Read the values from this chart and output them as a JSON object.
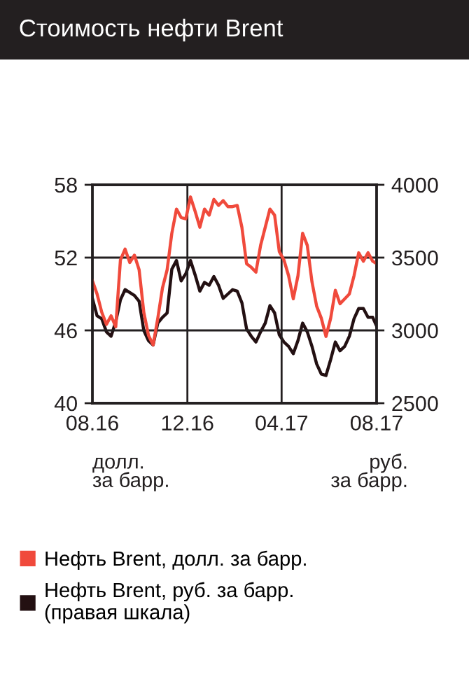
{
  "chart_data": {
    "type": "line",
    "title": "Стоимость нефти Brent",
    "x": [
      "2016-08-01",
      "2016-08-07",
      "2016-08-13",
      "2016-08-19",
      "2016-08-25",
      "2016-08-31",
      "2016-09-06",
      "2016-09-12",
      "2016-09-18",
      "2016-09-24",
      "2016-09-30",
      "2016-10-06",
      "2016-10-12",
      "2016-10-18",
      "2016-10-24",
      "2016-10-30",
      "2016-11-05",
      "2016-11-11",
      "2016-11-17",
      "2016-11-23",
      "2016-11-29",
      "2016-12-05",
      "2016-12-11",
      "2016-12-17",
      "2016-12-23",
      "2016-12-29",
      "2017-01-04",
      "2017-01-10",
      "2017-01-16",
      "2017-01-22",
      "2017-01-28",
      "2017-02-03",
      "2017-02-09",
      "2017-02-15",
      "2017-02-21",
      "2017-02-27",
      "2017-03-05",
      "2017-03-11",
      "2017-03-17",
      "2017-03-23",
      "2017-03-29",
      "2017-04-04",
      "2017-04-10",
      "2017-04-16",
      "2017-04-22",
      "2017-04-28",
      "2017-05-04",
      "2017-05-10",
      "2017-05-16",
      "2017-05-22",
      "2017-05-28",
      "2017-06-03",
      "2017-06-09",
      "2017-06-15",
      "2017-06-21",
      "2017-06-27",
      "2017-07-03",
      "2017-07-09",
      "2017-07-15",
      "2017-07-21",
      "2017-07-27",
      "2017-08-01"
    ],
    "series": [
      {
        "name": "Нефть Brent, долл. за барр.",
        "color": "#f04a3c",
        "values": [
          50.1,
          49.0,
          47.5,
          46.5,
          47.2,
          46.3,
          51.8,
          52.7,
          51.6,
          52.2,
          51.0,
          47.5,
          45.6,
          44.8,
          47.0,
          49.5,
          51.0,
          54.0,
          56.0,
          55.3,
          55.2,
          57.0,
          55.8,
          54.5,
          56.0,
          55.5,
          56.8,
          56.3,
          56.7,
          56.2,
          56.2,
          56.3,
          54.5,
          51.5,
          51.2,
          50.8,
          53.0,
          54.5,
          56.0,
          55.5,
          52.5,
          51.8,
          50.5,
          48.6,
          50.5,
          54.0,
          53.0,
          50.0,
          48.0,
          47.0,
          45.5,
          47.0,
          49.3,
          48.2,
          48.6,
          49.0,
          50.5,
          52.4,
          51.7,
          52.4,
          51.7,
          51.5
        ]
      },
      {
        "name": "Нефть Brent, руб. за барр.\n(правая шкала)",
        "color": "#231012",
        "axis": "y2",
        "values": [
          3220,
          3100,
          3080,
          2990,
          2960,
          3060,
          3210,
          3280,
          3260,
          3240,
          3200,
          3000,
          2930,
          2900,
          3050,
          3090,
          3120,
          3420,
          3480,
          3340,
          3390,
          3480,
          3380,
          3270,
          3330,
          3310,
          3370,
          3310,
          3220,
          3250,
          3280,
          3270,
          3190,
          3010,
          2960,
          2920,
          2990,
          3050,
          3170,
          3120,
          2970,
          2920,
          2890,
          2840,
          2930,
          3050,
          2990,
          2890,
          2770,
          2700,
          2690,
          2800,
          2920,
          2860,
          2890,
          2960,
          3080,
          3150,
          3150,
          3090,
          3090,
          3030
        ]
      }
    ],
    "xlim": [
      "2016-08-01",
      "2017-08-01"
    ],
    "xticks": [
      {
        "value": "2016-08-01",
        "label": "08.16"
      },
      {
        "value": "2016-12-01",
        "label": "12.16"
      },
      {
        "value": "2017-04-01",
        "label": "04.17"
      },
      {
        "value": "2017-08-01",
        "label": "08.17"
      }
    ],
    "ylim": [
      40,
      58
    ],
    "yticks": [
      40,
      46,
      52,
      58
    ],
    "y2lim": [
      2500,
      4000
    ],
    "y2ticks": [
      2500,
      3000,
      3500,
      4000
    ],
    "annotations": [
      "долл.\nза барр.",
      "руб.\nза барр."
    ],
    "grid": true,
    "legend": "bottom"
  }
}
